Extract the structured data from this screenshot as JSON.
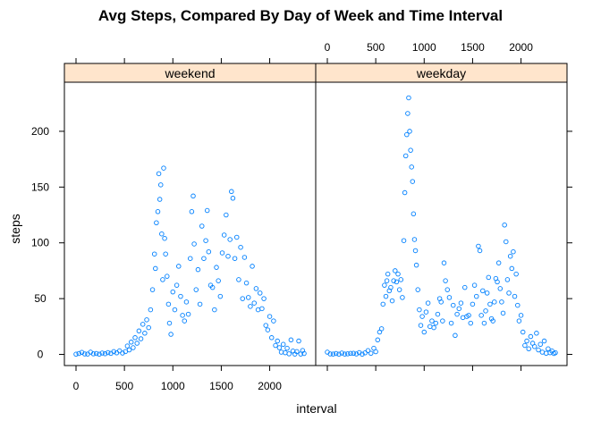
{
  "chart_data": {
    "type": "scatter",
    "title": "Avg Steps, Compared By Day of Week and Time Interval",
    "xlabel": "interval",
    "ylabel": "steps",
    "xlim": [
      -120,
      2475
    ],
    "ylim": [
      -10,
      244
    ],
    "x_ticks": [
      0,
      500,
      1000,
      1500,
      2000
    ],
    "y_ticks": [
      0,
      50,
      100,
      150,
      200
    ],
    "marker_color": "#0080ff",
    "strip_color": "#ffe5cc",
    "panels": [
      {
        "name": "weekend",
        "x_axis_side": "bottom",
        "points": [
          [
            0,
            0.2
          ],
          [
            30,
            0.8
          ],
          [
            60,
            1.8
          ],
          [
            90,
            0.4
          ],
          [
            120,
            0.3
          ],
          [
            150,
            2.0
          ],
          [
            180,
            0.5
          ],
          [
            210,
            0.8
          ],
          [
            240,
            0.2
          ],
          [
            270,
            1.2
          ],
          [
            300,
            0.6
          ],
          [
            330,
            1.6
          ],
          [
            360,
            0.9
          ],
          [
            390,
            2.5
          ],
          [
            420,
            1.4
          ],
          [
            450,
            3.2
          ],
          [
            480,
            1.2
          ],
          [
            510,
            2.5
          ],
          [
            530,
            7.5
          ],
          [
            550,
            4.0
          ],
          [
            570,
            11.0
          ],
          [
            590,
            6.0
          ],
          [
            610,
            15.0
          ],
          [
            630,
            10.0
          ],
          [
            650,
            21.0
          ],
          [
            670,
            14.0
          ],
          [
            690,
            27.0
          ],
          [
            710,
            19.0
          ],
          [
            730,
            31.0
          ],
          [
            750,
            24.0
          ],
          [
            770,
            40.0
          ],
          [
            790,
            58.0
          ],
          [
            810,
            90.0
          ],
          [
            820,
            77.0
          ],
          [
            830,
            118.0
          ],
          [
            845,
            128.0
          ],
          [
            855,
            162.0
          ],
          [
            865,
            139.0
          ],
          [
            875,
            152.0
          ],
          [
            885,
            108.0
          ],
          [
            895,
            67.0
          ],
          [
            905,
            167.0
          ],
          [
            915,
            104.0
          ],
          [
            925,
            90.0
          ],
          [
            940,
            70.0
          ],
          [
            955,
            45.0
          ],
          [
            965,
            28.0
          ],
          [
            980,
            18.0
          ],
          [
            1000,
            56.0
          ],
          [
            1020,
            40.0
          ],
          [
            1040,
            62.0
          ],
          [
            1060,
            79.0
          ],
          [
            1080,
            52.0
          ],
          [
            1100,
            35.0
          ],
          [
            1120,
            30.0
          ],
          [
            1140,
            47.0
          ],
          [
            1160,
            36.0
          ],
          [
            1180,
            86.0
          ],
          [
            1195,
            128.0
          ],
          [
            1210,
            142.0
          ],
          [
            1220,
            99.0
          ],
          [
            1240,
            58.0
          ],
          [
            1260,
            76.0
          ],
          [
            1280,
            45.0
          ],
          [
            1300,
            115.0
          ],
          [
            1320,
            86.0
          ],
          [
            1340,
            102.0
          ],
          [
            1355,
            129.0
          ],
          [
            1370,
            92.0
          ],
          [
            1390,
            62.0
          ],
          [
            1410,
            60.0
          ],
          [
            1430,
            40.0
          ],
          [
            1450,
            78.0
          ],
          [
            1470,
            66.0
          ],
          [
            1490,
            52.0
          ],
          [
            1510,
            91.0
          ],
          [
            1530,
            107.0
          ],
          [
            1550,
            125.0
          ],
          [
            1570,
            88.0
          ],
          [
            1590,
            103.0
          ],
          [
            1605,
            146.0
          ],
          [
            1620,
            140.0
          ],
          [
            1640,
            86.0
          ],
          [
            1660,
            105.0
          ],
          [
            1680,
            67.0
          ],
          [
            1700,
            96.0
          ],
          [
            1720,
            50.0
          ],
          [
            1740,
            87.0
          ],
          [
            1760,
            64.0
          ],
          [
            1780,
            51.0
          ],
          [
            1800,
            43.0
          ],
          [
            1820,
            79.0
          ],
          [
            1840,
            46.0
          ],
          [
            1860,
            59.0
          ],
          [
            1880,
            40.0
          ],
          [
            1900,
            55.0
          ],
          [
            1920,
            41.0
          ],
          [
            1940,
            50.0
          ],
          [
            1960,
            26.0
          ],
          [
            1980,
            22.0
          ],
          [
            2000,
            34.0
          ],
          [
            2020,
            15.0
          ],
          [
            2040,
            30.0
          ],
          [
            2060,
            8.0
          ],
          [
            2080,
            12.0
          ],
          [
            2100,
            6.0
          ],
          [
            2120,
            2.0
          ],
          [
            2140,
            9.0
          ],
          [
            2160,
            1.5
          ],
          [
            2180,
            5.5
          ],
          [
            2200,
            0.5
          ],
          [
            2220,
            13.0
          ],
          [
            2240,
            3.0
          ],
          [
            2260,
            0.3
          ],
          [
            2280,
            2.5
          ],
          [
            2300,
            12.0
          ],
          [
            2320,
            0.3
          ],
          [
            2340,
            3.5
          ],
          [
            2355,
            0.8
          ]
        ]
      },
      {
        "name": "weekday",
        "x_axis_side": "top",
        "points": [
          [
            0,
            2.0
          ],
          [
            30,
            0.4
          ],
          [
            60,
            0.3
          ],
          [
            90,
            0.8
          ],
          [
            120,
            0.2
          ],
          [
            150,
            1.2
          ],
          [
            180,
            0.3
          ],
          [
            210,
            0.5
          ],
          [
            240,
            0.9
          ],
          [
            270,
            1.0
          ],
          [
            300,
            0.4
          ],
          [
            330,
            1.6
          ],
          [
            360,
            0.2
          ],
          [
            390,
            1.4
          ],
          [
            420,
            3.4
          ],
          [
            450,
            1.0
          ],
          [
            480,
            5.5
          ],
          [
            500,
            2.4
          ],
          [
            520,
            13.0
          ],
          [
            540,
            20.0
          ],
          [
            560,
            23.0
          ],
          [
            575,
            45.0
          ],
          [
            590,
            62.0
          ],
          [
            605,
            52.0
          ],
          [
            615,
            66.0
          ],
          [
            625,
            72.0
          ],
          [
            640,
            57.0
          ],
          [
            655,
            60.0
          ],
          [
            670,
            48.0
          ],
          [
            685,
            66.0
          ],
          [
            700,
            75.0
          ],
          [
            715,
            65.0
          ],
          [
            730,
            72.0
          ],
          [
            745,
            58.0
          ],
          [
            760,
            67.0
          ],
          [
            775,
            51.0
          ],
          [
            790,
            102.0
          ],
          [
            800,
            145.0
          ],
          [
            810,
            178.0
          ],
          [
            820,
            197.0
          ],
          [
            830,
            216.0
          ],
          [
            840,
            230.0
          ],
          [
            850,
            200.0
          ],
          [
            860,
            183.0
          ],
          [
            870,
            168.0
          ],
          [
            880,
            155.0
          ],
          [
            890,
            126.0
          ],
          [
            900,
            103.0
          ],
          [
            910,
            93.0
          ],
          [
            920,
            80.0
          ],
          [
            935,
            58.0
          ],
          [
            950,
            40.0
          ],
          [
            965,
            26.0
          ],
          [
            980,
            34.0
          ],
          [
            1000,
            20.0
          ],
          [
            1020,
            38.0
          ],
          [
            1040,
            46.0
          ],
          [
            1060,
            25.0
          ],
          [
            1080,
            30.0
          ],
          [
            1100,
            24.0
          ],
          [
            1120,
            28.0
          ],
          [
            1140,
            36.0
          ],
          [
            1160,
            50.0
          ],
          [
            1175,
            47.0
          ],
          [
            1190,
            30.0
          ],
          [
            1205,
            82.0
          ],
          [
            1220,
            66.0
          ],
          [
            1240,
            58.0
          ],
          [
            1260,
            51.0
          ],
          [
            1280,
            28.0
          ],
          [
            1300,
            44.0
          ],
          [
            1320,
            17.0
          ],
          [
            1340,
            36.0
          ],
          [
            1360,
            41.0
          ],
          [
            1380,
            46.0
          ],
          [
            1400,
            33.0
          ],
          [
            1420,
            60.0
          ],
          [
            1440,
            34.0
          ],
          [
            1460,
            35.0
          ],
          [
            1480,
            28.0
          ],
          [
            1500,
            45.0
          ],
          [
            1520,
            62.0
          ],
          [
            1540,
            52.0
          ],
          [
            1560,
            97.0
          ],
          [
            1575,
            93.0
          ],
          [
            1590,
            35.0
          ],
          [
            1605,
            57.0
          ],
          [
            1620,
            28.0
          ],
          [
            1635,
            39.0
          ],
          [
            1650,
            55.0
          ],
          [
            1665,
            69.0
          ],
          [
            1680,
            45.0
          ],
          [
            1695,
            32.0
          ],
          [
            1710,
            30.0
          ],
          [
            1725,
            47.0
          ],
          [
            1740,
            68.0
          ],
          [
            1755,
            65.0
          ],
          [
            1770,
            82.0
          ],
          [
            1785,
            59.0
          ],
          [
            1800,
            47.0
          ],
          [
            1815,
            37.0
          ],
          [
            1830,
            116.0
          ],
          [
            1845,
            101.0
          ],
          [
            1860,
            67.0
          ],
          [
            1875,
            55.0
          ],
          [
            1890,
            88.0
          ],
          [
            1905,
            77.0
          ],
          [
            1920,
            92.0
          ],
          [
            1935,
            52.0
          ],
          [
            1950,
            72.0
          ],
          [
            1965,
            44.0
          ],
          [
            1980,
            30.0
          ],
          [
            2000,
            35.0
          ],
          [
            2020,
            20.0
          ],
          [
            2040,
            8.0
          ],
          [
            2060,
            12.0
          ],
          [
            2080,
            5.0
          ],
          [
            2100,
            16.0
          ],
          [
            2120,
            10.0
          ],
          [
            2140,
            7.0
          ],
          [
            2160,
            19.0
          ],
          [
            2180,
            4.0
          ],
          [
            2200,
            9.0
          ],
          [
            2220,
            2.0
          ],
          [
            2240,
            12.0
          ],
          [
            2260,
            1.0
          ],
          [
            2280,
            5.0
          ],
          [
            2300,
            1.5
          ],
          [
            2320,
            3.0
          ],
          [
            2340,
            0.8
          ],
          [
            2355,
            1.5
          ]
        ]
      }
    ]
  }
}
